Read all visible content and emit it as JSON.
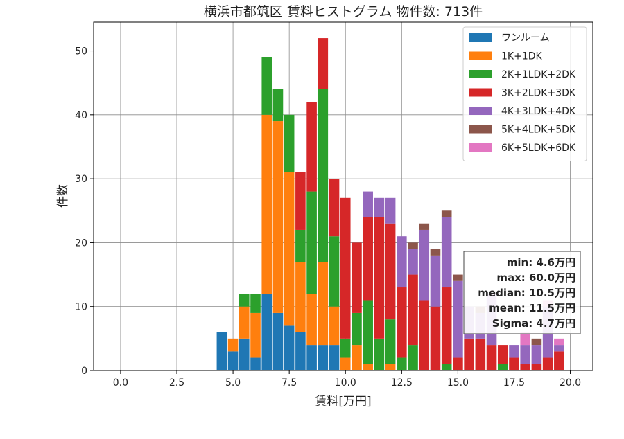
{
  "chart_data": {
    "type": "bar",
    "stacked": true,
    "title": "横浜市都筑区 賃料ヒストグラム 物件数: 713件",
    "xlabel": "賃料[万円]",
    "ylabel": "件数",
    "xlim": [
      -1.2,
      21.0
    ],
    "ylim": [
      0,
      54.5
    ],
    "xticks": [
      0.0,
      2.5,
      5.0,
      7.5,
      10.0,
      12.5,
      15.0,
      17.5,
      20.0
    ],
    "xtick_labels": [
      "0.0",
      "2.5",
      "5.0",
      "7.5",
      "10.0",
      "12.5",
      "15.0",
      "17.5",
      "20.0"
    ],
    "yticks": [
      0,
      10,
      20,
      30,
      40,
      50
    ],
    "ytick_labels": [
      "0",
      "10",
      "20",
      "30",
      "40",
      "50"
    ],
    "grid": true,
    "legend_position": "top-right",
    "bin_width": 0.5,
    "bin_centers": [
      4.5,
      5.0,
      5.5,
      6.0,
      6.5,
      7.0,
      7.5,
      8.0,
      8.5,
      9.0,
      9.5,
      10.0,
      10.5,
      11.0,
      11.5,
      12.0,
      12.5,
      13.0,
      13.5,
      14.0,
      14.5,
      15.0,
      15.5,
      16.0,
      16.5,
      17.0,
      17.5,
      18.0,
      18.5,
      19.0,
      19.5
    ],
    "series": [
      {
        "name": "ワンルーム",
        "color": "#1f77b4",
        "values": [
          6,
          3,
          5,
          2,
          12,
          9,
          7,
          6,
          4,
          4,
          4,
          0,
          0,
          0,
          0,
          0,
          0,
          0,
          0,
          0,
          0,
          0,
          0,
          0,
          0,
          0,
          0,
          0,
          0,
          0,
          0
        ]
      },
      {
        "name": "1K+1DK",
        "color": "#ff7f0e",
        "values": [
          0,
          2,
          5,
          7,
          28,
          30,
          24,
          11,
          8,
          13,
          6,
          2,
          4,
          1,
          0,
          1,
          0,
          0,
          0,
          0,
          0,
          0,
          0,
          0,
          0,
          0,
          0,
          0,
          0,
          0,
          0
        ]
      },
      {
        "name": "2K+1LDK+2DK",
        "color": "#2ca02c",
        "values": [
          0,
          0,
          2,
          3,
          9,
          5,
          9,
          5,
          16,
          27,
          11,
          3,
          5,
          10,
          5,
          7,
          2,
          4,
          0,
          0,
          1,
          0,
          0,
          0,
          0,
          1,
          0,
          0,
          0,
          0,
          0
        ]
      },
      {
        "name": "3K+2LDK+3DK",
        "color": "#d62728",
        "values": [
          0,
          0,
          0,
          0,
          0,
          0,
          0,
          9,
          14,
          8,
          9,
          22,
          11,
          13,
          19,
          15,
          11,
          11,
          11,
          10,
          12,
          2,
          5,
          5,
          4,
          3,
          2,
          1,
          1,
          2,
          3
        ]
      },
      {
        "name": "4K+3LDK+4DK",
        "color": "#9467bd",
        "values": [
          0,
          0,
          0,
          0,
          0,
          0,
          0,
          0,
          0,
          0,
          0,
          0,
          0,
          4,
          3,
          4,
          8,
          4,
          11,
          8,
          11,
          12,
          5,
          4,
          8,
          0,
          2,
          3,
          3,
          8,
          1
        ]
      },
      {
        "name": "5K+4LDK+5DK",
        "color": "#8c564b",
        "values": [
          0,
          0,
          0,
          0,
          0,
          0,
          0,
          0,
          0,
          0,
          0,
          0,
          0,
          0,
          0,
          0,
          0,
          1,
          1,
          1,
          1,
          1,
          0,
          1,
          0,
          0,
          0,
          0,
          1,
          0,
          0
        ]
      },
      {
        "name": "6K+5LDK+6DK",
        "color": "#e377c2",
        "values": [
          0,
          0,
          0,
          0,
          0,
          0,
          0,
          0,
          0,
          0,
          0,
          0,
          0,
          0,
          0,
          0,
          0,
          0,
          0,
          0,
          0,
          0,
          0,
          0,
          0,
          0,
          0,
          2,
          0,
          1,
          1
        ]
      }
    ],
    "stats": [
      "min: 4.6万円",
      "max: 60.0万円",
      "median: 10.5万円",
      "mean: 11.5万円",
      "Sigma: 4.7万円"
    ]
  }
}
